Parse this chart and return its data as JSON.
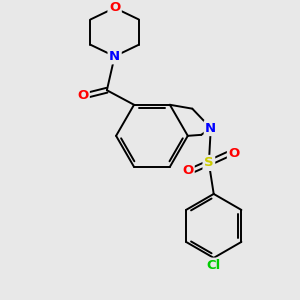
{
  "background_color": "#e8e8e8",
  "bond_color": "#000000",
  "atom_colors": {
    "O": "#ff0000",
    "N": "#0000ff",
    "S": "#cccc00",
    "Cl": "#00cc00",
    "C": "#000000"
  },
  "figsize": [
    3.0,
    3.0
  ],
  "dpi": 100,
  "lw": 1.4,
  "fs": 9.5
}
